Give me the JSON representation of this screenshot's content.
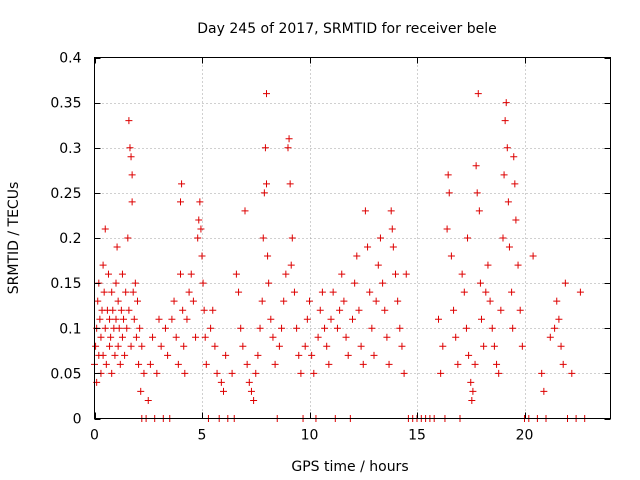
{
  "chart_data": {
    "type": "scatter",
    "title": "Day 245 of 2017, SRMTID for receiver bele",
    "xlabel": "GPS time / hours",
    "ylabel": "SRMTID / TECUs",
    "xlim": [
      0,
      24
    ],
    "ylim": [
      0,
      0.4
    ],
    "x_ticks": [
      0,
      5,
      10,
      15,
      20
    ],
    "y_ticks": [
      0,
      0.05,
      0.1,
      0.15,
      0.2,
      0.25,
      0.3,
      0.35,
      0.4
    ],
    "x_tick_labels": [
      "0",
      "5",
      "10",
      "15",
      "20"
    ],
    "y_tick_labels": [
      "0",
      "0.05",
      "0.1",
      "0.15",
      "0.2",
      "0.25",
      "0.3",
      "0.35",
      "0.4"
    ],
    "grid": true,
    "marker": "+",
    "series": [
      {
        "name": "SRMTID",
        "color": "#dd0000",
        "points": [
          [
            0.0,
            0.06
          ],
          [
            0.05,
            0.08
          ],
          [
            0.1,
            0.04
          ],
          [
            0.1,
            0.1
          ],
          [
            0.15,
            0.13
          ],
          [
            0.2,
            0.07
          ],
          [
            0.2,
            0.15
          ],
          [
            0.25,
            0.11
          ],
          [
            0.3,
            0.09
          ],
          [
            0.3,
            0.05
          ],
          [
            0.35,
            0.12
          ],
          [
            0.4,
            0.17
          ],
          [
            0.4,
            0.07
          ],
          [
            0.45,
            0.14
          ],
          [
            0.5,
            0.1
          ],
          [
            0.5,
            0.21
          ],
          [
            0.55,
            0.06
          ],
          [
            0.6,
            0.12
          ],
          [
            0.65,
            0.16
          ],
          [
            0.7,
            0.08
          ],
          [
            0.7,
            0.11
          ],
          [
            0.75,
            0.09
          ],
          [
            0.8,
            0.14
          ],
          [
            0.8,
            0.05
          ],
          [
            0.85,
            0.12
          ],
          [
            0.9,
            0.1
          ],
          [
            0.95,
            0.07
          ],
          [
            1.0,
            0.15
          ],
          [
            1.0,
            0.11
          ],
          [
            1.05,
            0.19
          ],
          [
            1.1,
            0.08
          ],
          [
            1.1,
            0.13
          ],
          [
            1.15,
            0.1
          ],
          [
            1.2,
            0.06
          ],
          [
            1.25,
            0.12
          ],
          [
            1.3,
            0.09
          ],
          [
            1.3,
            0.16
          ],
          [
            1.35,
            0.11
          ],
          [
            1.4,
            0.07
          ],
          [
            1.45,
            0.14
          ],
          [
            1.5,
            0.1
          ],
          [
            1.55,
            0.2
          ],
          [
            1.6,
            0.33
          ],
          [
            1.6,
            0.12
          ],
          [
            1.65,
            0.3
          ],
          [
            1.7,
            0.29
          ],
          [
            1.7,
            0.08
          ],
          [
            1.75,
            0.27
          ],
          [
            1.75,
            0.24
          ],
          [
            1.8,
            0.14
          ],
          [
            1.85,
            0.11
          ],
          [
            1.9,
            0.15
          ],
          [
            1.95,
            0.09
          ],
          [
            2.0,
            0.13
          ],
          [
            2.05,
            0.06
          ],
          [
            2.1,
            0.1
          ],
          [
            2.15,
            0.03
          ],
          [
            2.2,
            0.08
          ],
          [
            2.2,
            0.0
          ],
          [
            2.3,
            0.05
          ],
          [
            2.4,
            0.0
          ],
          [
            2.5,
            0.02
          ],
          [
            2.6,
            0.06
          ],
          [
            2.7,
            0.09
          ],
          [
            2.8,
            0.0
          ],
          [
            2.9,
            0.05
          ],
          [
            3.0,
            0.11
          ],
          [
            3.1,
            0.08
          ],
          [
            3.2,
            0.0
          ],
          [
            3.3,
            0.1
          ],
          [
            3.4,
            0.07
          ],
          [
            3.5,
            0.0
          ],
          [
            3.6,
            0.11
          ],
          [
            3.7,
            0.13
          ],
          [
            3.8,
            0.09
          ],
          [
            3.9,
            0.06
          ],
          [
            4.0,
            0.16
          ],
          [
            4.0,
            0.24
          ],
          [
            4.05,
            0.26
          ],
          [
            4.1,
            0.12
          ],
          [
            4.15,
            0.08
          ],
          [
            4.2,
            0.05
          ],
          [
            4.3,
            0.11
          ],
          [
            4.4,
            0.14
          ],
          [
            4.5,
            0.16
          ],
          [
            4.6,
            0.13
          ],
          [
            4.7,
            0.09
          ],
          [
            4.8,
            0.2
          ],
          [
            4.85,
            0.22
          ],
          [
            4.9,
            0.24
          ],
          [
            4.95,
            0.21
          ],
          [
            5.0,
            0.18
          ],
          [
            5.05,
            0.15
          ],
          [
            5.1,
            0.12
          ],
          [
            5.15,
            0.09
          ],
          [
            5.2,
            0.06
          ],
          [
            5.3,
            0.0
          ],
          [
            5.4,
            0.1
          ],
          [
            5.5,
            0.12
          ],
          [
            5.6,
            0.08
          ],
          [
            5.7,
            0.05
          ],
          [
            5.8,
            0.0
          ],
          [
            5.9,
            0.04
          ],
          [
            6.0,
            0.03
          ],
          [
            6.1,
            0.07
          ],
          [
            6.2,
            0.0
          ],
          [
            6.4,
            0.05
          ],
          [
            6.5,
            0.0
          ],
          [
            6.6,
            0.16
          ],
          [
            6.7,
            0.14
          ],
          [
            6.8,
            0.1
          ],
          [
            6.9,
            0.08
          ],
          [
            7.0,
            0.23
          ],
          [
            7.1,
            0.06
          ],
          [
            7.2,
            0.04
          ],
          [
            7.3,
            0.03
          ],
          [
            7.4,
            0.02
          ],
          [
            7.5,
            0.05
          ],
          [
            7.6,
            0.07
          ],
          [
            7.7,
            0.1
          ],
          [
            7.8,
            0.13
          ],
          [
            7.85,
            0.2
          ],
          [
            7.9,
            0.25
          ],
          [
            7.95,
            0.3
          ],
          [
            8.0,
            0.36
          ],
          [
            8.0,
            0.26
          ],
          [
            8.05,
            0.18
          ],
          [
            8.1,
            0.15
          ],
          [
            8.2,
            0.11
          ],
          [
            8.3,
            0.09
          ],
          [
            8.4,
            0.06
          ],
          [
            8.5,
            0.0
          ],
          [
            8.6,
            0.08
          ],
          [
            8.7,
            0.1
          ],
          [
            8.8,
            0.13
          ],
          [
            8.9,
            0.16
          ],
          [
            9.0,
            0.3
          ],
          [
            9.05,
            0.31
          ],
          [
            9.1,
            0.26
          ],
          [
            9.15,
            0.17
          ],
          [
            9.2,
            0.2
          ],
          [
            9.3,
            0.14
          ],
          [
            9.4,
            0.1
          ],
          [
            9.5,
            0.07
          ],
          [
            9.6,
            0.05
          ],
          [
            9.7,
            0.0
          ],
          [
            9.8,
            0.08
          ],
          [
            9.9,
            0.11
          ],
          [
            10.0,
            0.13
          ],
          [
            10.1,
            0.07
          ],
          [
            10.2,
            0.05
          ],
          [
            10.3,
            0.0
          ],
          [
            10.4,
            0.09
          ],
          [
            10.5,
            0.12
          ],
          [
            10.6,
            0.14
          ],
          [
            10.7,
            0.1
          ],
          [
            10.8,
            0.08
          ],
          [
            10.9,
            0.06
          ],
          [
            11.0,
            0.11
          ],
          [
            11.1,
            0.14
          ],
          [
            11.2,
            0.0
          ],
          [
            11.3,
            0.1
          ],
          [
            11.4,
            0.12
          ],
          [
            11.5,
            0.16
          ],
          [
            11.6,
            0.13
          ],
          [
            11.7,
            0.09
          ],
          [
            11.8,
            0.07
          ],
          [
            11.9,
            0.0
          ],
          [
            12.0,
            0.11
          ],
          [
            12.1,
            0.15
          ],
          [
            12.2,
            0.18
          ],
          [
            12.3,
            0.12
          ],
          [
            12.4,
            0.08
          ],
          [
            12.5,
            0.06
          ],
          [
            12.6,
            0.23
          ],
          [
            12.7,
            0.19
          ],
          [
            12.8,
            0.14
          ],
          [
            12.9,
            0.1
          ],
          [
            13.0,
            0.07
          ],
          [
            13.1,
            0.13
          ],
          [
            13.2,
            0.17
          ],
          [
            13.3,
            0.2
          ],
          [
            13.4,
            0.15
          ],
          [
            13.5,
            0.12
          ],
          [
            13.6,
            0.09
          ],
          [
            13.7,
            0.06
          ],
          [
            13.8,
            0.23
          ],
          [
            13.85,
            0.21
          ],
          [
            13.9,
            0.19
          ],
          [
            14.0,
            0.16
          ],
          [
            14.1,
            0.13
          ],
          [
            14.2,
            0.1
          ],
          [
            14.3,
            0.08
          ],
          [
            14.4,
            0.05
          ],
          [
            14.5,
            0.16
          ],
          [
            14.6,
            0.0
          ],
          [
            14.8,
            0.0
          ],
          [
            15.0,
            0.0
          ],
          [
            15.2,
            0.0
          ],
          [
            15.4,
            0.0
          ],
          [
            15.6,
            0.0
          ],
          [
            15.8,
            0.0
          ],
          [
            16.0,
            0.11
          ],
          [
            16.1,
            0.05
          ],
          [
            16.2,
            0.08
          ],
          [
            16.3,
            0.0
          ],
          [
            16.4,
            0.21
          ],
          [
            16.45,
            0.27
          ],
          [
            16.5,
            0.25
          ],
          [
            16.6,
            0.18
          ],
          [
            16.7,
            0.12
          ],
          [
            16.8,
            0.09
          ],
          [
            16.9,
            0.06
          ],
          [
            17.0,
            0.0
          ],
          [
            17.1,
            0.16
          ],
          [
            17.2,
            0.14
          ],
          [
            17.3,
            0.1
          ],
          [
            17.35,
            0.2
          ],
          [
            17.4,
            0.07
          ],
          [
            17.5,
            0.04
          ],
          [
            17.55,
            0.02
          ],
          [
            17.6,
            0.03
          ],
          [
            17.7,
            0.06
          ],
          [
            17.75,
            0.28
          ],
          [
            17.8,
            0.25
          ],
          [
            17.85,
            0.36
          ],
          [
            17.9,
            0.23
          ],
          [
            17.95,
            0.15
          ],
          [
            18.0,
            0.11
          ],
          [
            18.1,
            0.08
          ],
          [
            18.2,
            0.14
          ],
          [
            18.3,
            0.17
          ],
          [
            18.4,
            0.13
          ],
          [
            18.5,
            0.1
          ],
          [
            18.6,
            0.08
          ],
          [
            18.7,
            0.06
          ],
          [
            18.8,
            0.05
          ],
          [
            18.9,
            0.12
          ],
          [
            19.0,
            0.2
          ],
          [
            19.05,
            0.27
          ],
          [
            19.1,
            0.33
          ],
          [
            19.15,
            0.35
          ],
          [
            19.2,
            0.3
          ],
          [
            19.25,
            0.24
          ],
          [
            19.3,
            0.19
          ],
          [
            19.4,
            0.14
          ],
          [
            19.45,
            0.1
          ],
          [
            19.5,
            0.29
          ],
          [
            19.55,
            0.26
          ],
          [
            19.6,
            0.22
          ],
          [
            19.7,
            0.17
          ],
          [
            19.8,
            0.12
          ],
          [
            19.9,
            0.08
          ],
          [
            20.0,
            0.0
          ],
          [
            20.2,
            0.0
          ],
          [
            20.4,
            0.18
          ],
          [
            20.6,
            0.0
          ],
          [
            20.8,
            0.05
          ],
          [
            20.9,
            0.03
          ],
          [
            21.0,
            0.0
          ],
          [
            21.2,
            0.09
          ],
          [
            21.4,
            0.1
          ],
          [
            21.5,
            0.13
          ],
          [
            21.6,
            0.11
          ],
          [
            21.7,
            0.08
          ],
          [
            21.8,
            0.06
          ],
          [
            21.9,
            0.15
          ],
          [
            22.0,
            0.0
          ],
          [
            22.2,
            0.05
          ],
          [
            22.4,
            0.0
          ],
          [
            22.6,
            0.14
          ],
          [
            22.8,
            0.0
          ]
        ]
      }
    ]
  }
}
